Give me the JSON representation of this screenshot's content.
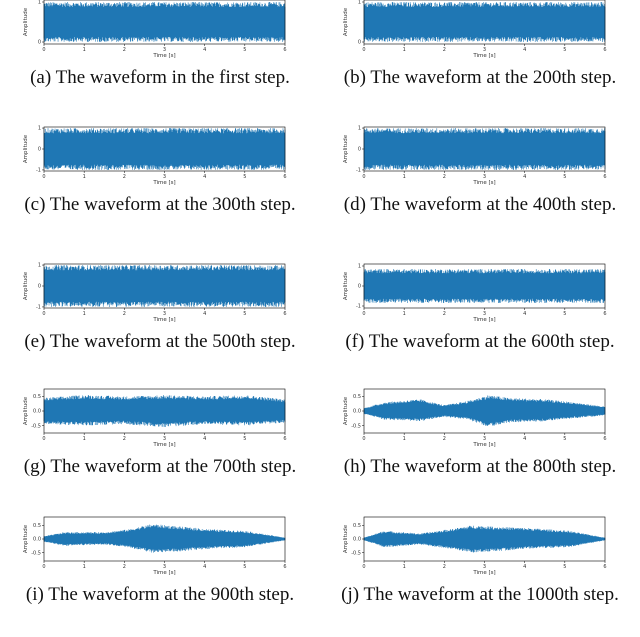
{
  "colors": {
    "wave": "#1f77b4",
    "axis": "#000000",
    "text": "#111111"
  },
  "charts": [
    {
      "caption": "(a)  The waveform in the first step.",
      "type": "line",
      "xlabel": "Time [s]",
      "ylabel": "Amplitude",
      "x_ticks": [
        "0",
        "1",
        "2",
        "3",
        "4",
        "5",
        "6"
      ],
      "y_ticks": [
        "0",
        "1"
      ],
      "xlim": [
        0,
        6
      ],
      "ylim": [
        -0.05,
        1.05
      ],
      "envelope": [
        {
          "t": 0,
          "lo": 0.0,
          "hi": 1.0
        },
        {
          "t": 6,
          "lo": 0.0,
          "hi": 1.0
        }
      ]
    },
    {
      "caption": "(b)  The waveform at the 200th step.",
      "type": "line",
      "xlabel": "Time [s]",
      "ylabel": "Amplitude",
      "x_ticks": [
        "0",
        "1",
        "2",
        "3",
        "4",
        "5",
        "6"
      ],
      "y_ticks": [
        "0",
        "1"
      ],
      "xlim": [
        0,
        6
      ],
      "ylim": [
        -0.05,
        1.05
      ],
      "envelope": [
        {
          "t": 0,
          "lo": 0.0,
          "hi": 1.0
        },
        {
          "t": 6,
          "lo": 0.0,
          "hi": 1.0
        }
      ]
    },
    {
      "caption": "(c)  The waveform at the 300th step.",
      "type": "line",
      "xlabel": "Time [s]",
      "ylabel": "Amplitude",
      "x_ticks": [
        "0",
        "1",
        "2",
        "3",
        "4",
        "5",
        "6"
      ],
      "y_ticks": [
        "-1",
        "0",
        "1"
      ],
      "xlim": [
        0,
        6
      ],
      "ylim": [
        -1.05,
        1.05
      ],
      "envelope": [
        {
          "t": 0,
          "lo": -1.0,
          "hi": 1.0
        },
        {
          "t": 6,
          "lo": -1.0,
          "hi": 1.0
        }
      ]
    },
    {
      "caption": "(d)  The waveform at the 400th step.",
      "type": "line",
      "xlabel": "Time [s]",
      "ylabel": "Amplitude",
      "x_ticks": [
        "0",
        "1",
        "2",
        "3",
        "4",
        "5",
        "6"
      ],
      "y_ticks": [
        "-1",
        "0",
        "1"
      ],
      "xlim": [
        0,
        6
      ],
      "ylim": [
        -1.05,
        1.05
      ],
      "envelope": [
        {
          "t": 0,
          "lo": -1.0,
          "hi": 1.0
        },
        {
          "t": 6,
          "lo": -1.0,
          "hi": 1.0
        }
      ]
    },
    {
      "caption": "(e)  The waveform at the 500th step.",
      "type": "line",
      "xlabel": "Time [s]",
      "ylabel": "Amplitude",
      "x_ticks": [
        "0",
        "1",
        "2",
        "3",
        "4",
        "5",
        "6"
      ],
      "y_ticks": [
        "-1",
        "0",
        "1"
      ],
      "xlim": [
        0,
        6
      ],
      "ylim": [
        -1.05,
        1.05
      ],
      "envelope": [
        {
          "t": 0,
          "lo": -1.0,
          "hi": 1.0
        },
        {
          "t": 6,
          "lo": -1.0,
          "hi": 1.0
        }
      ]
    },
    {
      "caption": "(f)  The waveform at the 600th step.",
      "type": "line",
      "xlabel": "Time [s]",
      "ylabel": "Amplitude",
      "x_ticks": [
        "0",
        "1",
        "2",
        "3",
        "4",
        "5",
        "6"
      ],
      "y_ticks": [
        "-1",
        "0",
        "1"
      ],
      "xlim": [
        0,
        6
      ],
      "ylim": [
        -1.1,
        1.1
      ],
      "envelope": [
        {
          "t": 0,
          "lo": -0.85,
          "hi": 0.85
        },
        {
          "t": 6,
          "lo": -0.85,
          "hi": 0.85
        }
      ]
    },
    {
      "caption": "(g)  The waveform at the 700th step.",
      "type": "line",
      "xlabel": "Time [s]",
      "ylabel": "Amplitude",
      "x_ticks": [
        "0",
        "1",
        "2",
        "3",
        "4",
        "5",
        "6"
      ],
      "y_ticks": [
        "-0.5",
        "0.0",
        "0.5"
      ],
      "xlim": [
        0,
        6
      ],
      "ylim": [
        -0.75,
        0.75
      ],
      "envelope": [
        {
          "t": 0,
          "lo": -0.45,
          "hi": 0.45
        },
        {
          "t": 1,
          "lo": -0.5,
          "hi": 0.55
        },
        {
          "t": 2,
          "lo": -0.45,
          "hi": 0.5
        },
        {
          "t": 3,
          "lo": -0.55,
          "hi": 0.55
        },
        {
          "t": 4,
          "lo": -0.45,
          "hi": 0.5
        },
        {
          "t": 5,
          "lo": -0.5,
          "hi": 0.55
        },
        {
          "t": 6,
          "lo": -0.4,
          "hi": 0.4
        }
      ]
    },
    {
      "caption": "(h)  The waveform at the 800th step.",
      "type": "line",
      "xlabel": "Time [s]",
      "ylabel": "Amplitude",
      "x_ticks": [
        "0",
        "1",
        "2",
        "3",
        "4",
        "5",
        "6"
      ],
      "y_ticks": [
        "-0.5",
        "0.0",
        "0.5"
      ],
      "xlim": [
        0,
        6
      ],
      "ylim": [
        -0.75,
        0.75
      ],
      "envelope": [
        {
          "t": 0,
          "lo": -0.1,
          "hi": 0.1
        },
        {
          "t": 0.5,
          "lo": -0.3,
          "hi": 0.3
        },
        {
          "t": 1.4,
          "lo": -0.35,
          "hi": 0.4
        },
        {
          "t": 2,
          "lo": -0.2,
          "hi": 0.2
        },
        {
          "t": 2.6,
          "lo": -0.3,
          "hi": 0.35
        },
        {
          "t": 3.1,
          "lo": -0.55,
          "hi": 0.55
        },
        {
          "t": 3.6,
          "lo": -0.4,
          "hi": 0.45
        },
        {
          "t": 4.5,
          "lo": -0.35,
          "hi": 0.4
        },
        {
          "t": 5.2,
          "lo": -0.25,
          "hi": 0.3
        },
        {
          "t": 6,
          "lo": -0.15,
          "hi": 0.15
        }
      ]
    },
    {
      "caption": "(i)  The waveform at the 900th step.",
      "type": "line",
      "xlabel": "Time [s]",
      "ylabel": "Amplitude",
      "x_ticks": [
        "0",
        "1",
        "2",
        "3",
        "4",
        "5",
        "6"
      ],
      "y_ticks": [
        "-0.5",
        "0.0",
        "0.5"
      ],
      "xlim": [
        0,
        6
      ],
      "ylim": [
        -0.8,
        0.8
      ],
      "envelope": [
        {
          "t": 0,
          "lo": -0.1,
          "hi": 0.1
        },
        {
          "t": 0.5,
          "lo": -0.25,
          "hi": 0.25
        },
        {
          "t": 1.5,
          "lo": -0.2,
          "hi": 0.25
        },
        {
          "t": 2.1,
          "lo": -0.3,
          "hi": 0.35
        },
        {
          "t": 2.7,
          "lo": -0.5,
          "hi": 0.55
        },
        {
          "t": 3.4,
          "lo": -0.45,
          "hi": 0.45
        },
        {
          "t": 4.2,
          "lo": -0.35,
          "hi": 0.35
        },
        {
          "t": 5,
          "lo": -0.3,
          "hi": 0.3
        },
        {
          "t": 6,
          "lo": -0.05,
          "hi": 0.05
        }
      ]
    },
    {
      "caption": "(j)  The waveform at the 1000th step.",
      "type": "line",
      "xlabel": "Time [s]",
      "ylabel": "Amplitude",
      "x_ticks": [
        "0",
        "1",
        "2",
        "3",
        "4",
        "5",
        "6"
      ],
      "y_ticks": [
        "-0.5",
        "0.0",
        "0.5"
      ],
      "xlim": [
        0,
        6
      ],
      "ylim": [
        -0.8,
        0.8
      ],
      "envelope": [
        {
          "t": 0,
          "lo": -0.05,
          "hi": 0.05
        },
        {
          "t": 0.5,
          "lo": -0.3,
          "hi": 0.3
        },
        {
          "t": 1.4,
          "lo": -0.2,
          "hi": 0.2
        },
        {
          "t": 2.1,
          "lo": -0.35,
          "hi": 0.35
        },
        {
          "t": 2.7,
          "lo": -0.5,
          "hi": 0.5
        },
        {
          "t": 3.3,
          "lo": -0.45,
          "hi": 0.45
        },
        {
          "t": 4.1,
          "lo": -0.35,
          "hi": 0.4
        },
        {
          "t": 5.1,
          "lo": -0.3,
          "hi": 0.3
        },
        {
          "t": 6,
          "lo": -0.05,
          "hi": 0.05
        }
      ]
    }
  ]
}
